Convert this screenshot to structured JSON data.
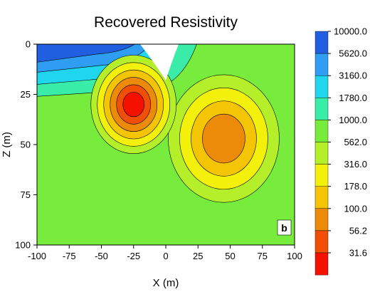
{
  "chart_data": {
    "type": "heatmap",
    "title": "Recovered Resistivity",
    "xlabel": "X (m)",
    "ylabel": "Z (m)",
    "xlim": [
      -100,
      100
    ],
    "ylim": [
      0,
      100
    ],
    "y_inverted": true,
    "xticks": [
      "-100",
      "-75",
      "-50",
      "-25",
      "0",
      "25",
      "50",
      "75",
      "100"
    ],
    "yticks": [
      "0",
      "25",
      "50",
      "75",
      "100"
    ],
    "panel_label": "b",
    "colorbar": {
      "levels": [
        "10000.0",
        "5620.0",
        "3160.0",
        "1780.0",
        "1000.0",
        "562.0",
        "316.0",
        "178.0",
        "100.0",
        "56.2",
        "31.6"
      ],
      "colors": [
        "#1f5fe0",
        "#2f9ef2",
        "#1fd6ee",
        "#39eca7",
        "#78ec3c",
        "#b4ef2a",
        "#f3f00c",
        "#f4c505",
        "#ec8a0a",
        "#f24f06",
        "#f41100"
      ]
    },
    "features": [
      {
        "name": "conductive body 1",
        "x": -25,
        "z": 30,
        "min_value": 31.6
      },
      {
        "name": "conductive body 2",
        "x": 45,
        "z": 47,
        "min_value": 100.0
      },
      {
        "name": "resistive near-surface layer",
        "x": -60,
        "z": 5,
        "max_value": 10000.0
      },
      {
        "name": "background",
        "value": 1000.0
      }
    ]
  }
}
